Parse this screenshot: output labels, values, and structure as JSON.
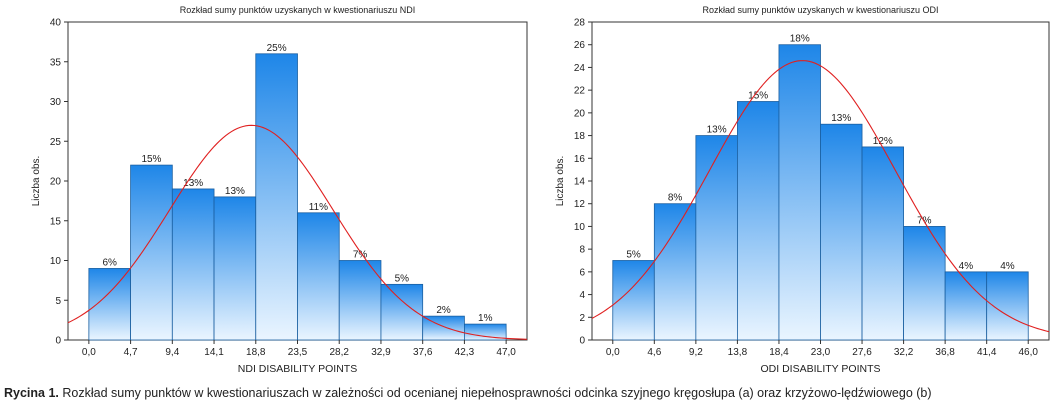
{
  "chart_data": [
    {
      "type": "bar",
      "title": "Rozkład sumy punktów uzyskanych w kwestionariuszu NDI",
      "xlabel": "NDI DISABILITY POINTS",
      "ylabel": "Liczba obs.",
      "x_ticks": [
        "0,0",
        "4,7",
        "9,4",
        "14,1",
        "18,8",
        "23,5",
        "28,2",
        "32,9",
        "37,6",
        "42,3",
        "47,0"
      ],
      "bin_width": 4.7,
      "values": [
        9,
        22,
        19,
        18,
        36,
        16,
        10,
        7,
        3,
        2
      ],
      "percent_labels": [
        "6%",
        "15%",
        "13%",
        "13%",
        "25%",
        "11%",
        "7%",
        "5%",
        "2%",
        "1%"
      ],
      "ylim": [
        0,
        40
      ],
      "yticks": [
        0,
        5,
        10,
        15,
        20,
        25,
        30,
        35,
        40
      ],
      "xlim": [
        -2.35,
        49.35
      ],
      "normal_curve": {
        "mean": 18.3,
        "sd": 9.2,
        "peak": 27
      },
      "grid": false
    },
    {
      "type": "bar",
      "title": "Rozkład sumy punktów uzyskanych w kwestionariuszu ODI",
      "xlabel": "ODI DISABILITY POINTS",
      "ylabel": "Liczba obs.",
      "x_ticks": [
        "0,0",
        "4,6",
        "9,2",
        "13,8",
        "18,4",
        "23,0",
        "27,6",
        "32,2",
        "36,8",
        "41,4",
        "46,0"
      ],
      "bin_width": 4.6,
      "values": [
        7,
        12,
        18,
        21,
        26,
        19,
        17,
        10,
        6,
        6
      ],
      "percent_labels": [
        "5%",
        "8%",
        "13%",
        "15%",
        "18%",
        "13%",
        "12%",
        "7%",
        "4%",
        "4%"
      ],
      "ylim": [
        0,
        28
      ],
      "yticks": [
        0,
        2,
        4,
        6,
        8,
        10,
        12,
        14,
        16,
        18,
        20,
        22,
        24,
        26,
        28
      ],
      "xlim": [
        -2.3,
        48.3
      ],
      "normal_curve": {
        "mean": 21,
        "sd": 10.3,
        "peak": 24.6
      },
      "grid": false
    }
  ],
  "caption": {
    "label": "Rycina 1.",
    "text": " Rozkład sumy punktów w kwestionariuszach w zależności od ocenianej niepełnosprawności odcinka szyjnego kręgosłupa (a) oraz krzyżowo-lędźwiowego (b)"
  },
  "colors": {
    "bar_top": "#1e86e8",
    "bar_bottom": "#eaf5ff",
    "bar_stroke": "#1a5fa0",
    "curve": "#e02020",
    "frame": "#333333"
  }
}
